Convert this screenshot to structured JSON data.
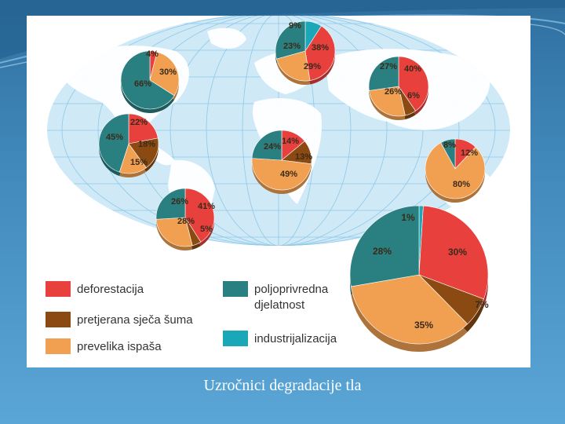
{
  "slide": {
    "caption": "Uzročnici degradacije tla",
    "background": "#3f87b8"
  },
  "colors": {
    "deforestacija": "#e8403c",
    "pretjerana_sjeca": "#8a4a12",
    "prevelika_ispasa": "#f0a050",
    "poljoprivreda": "#2a7f80",
    "industrijalizacija": "#1aa8b8",
    "ocean": "#cfe9f7",
    "land": "#ffffff"
  },
  "legend": {
    "items": [
      {
        "key": "deforestacija",
        "lines": [
          "deforestacija"
        ]
      },
      {
        "key": "pretjerana_sjeca",
        "lines": [
          "pretjerana sječa šuma"
        ]
      },
      {
        "key": "prevelika_ispasa",
        "lines": [
          "prevelika ispaša"
        ]
      },
      {
        "key": "poljoprivreda",
        "lines": [
          "poljoprivredna",
          "djelatnost"
        ]
      },
      {
        "key": "industrijalizacija",
        "lines": [
          "industrijalizacija"
        ]
      }
    ]
  },
  "chart_data": {
    "type": "pie",
    "series": [
      {
        "region": "europe",
        "slices": [
          {
            "cat": "industrijalizacija",
            "value": 9,
            "label": "9%"
          },
          {
            "cat": "deforestacija",
            "value": 38,
            "label": "38%"
          },
          {
            "cat": "prevelika_ispasa",
            "value": 23,
            "label": "23%"
          },
          {
            "cat": "poljoprivreda",
            "value": 29,
            "label": "29%"
          }
        ]
      },
      {
        "region": "north-america",
        "slices": [
          {
            "cat": "deforestacija",
            "value": 4,
            "label": "4%"
          },
          {
            "cat": "prevelika_ispasa",
            "value": 30,
            "label": "30%"
          },
          {
            "cat": "poljoprivreda",
            "value": 66,
            "label": "66%"
          }
        ]
      },
      {
        "region": "central-america",
        "slices": [
          {
            "cat": "deforestacija",
            "value": 22,
            "label": "22%"
          },
          {
            "cat": "pretjerana_sjeca",
            "value": 18,
            "label": "18%"
          },
          {
            "cat": "prevelika_ispasa",
            "value": 15,
            "label": "15%"
          },
          {
            "cat": "poljoprivreda",
            "value": 45,
            "label": "45%"
          }
        ]
      },
      {
        "region": "south-america",
        "slices": [
          {
            "cat": "deforestacija",
            "value": 41,
            "label": "41%"
          },
          {
            "cat": "pretjerana_sjeca",
            "value": 5,
            "label": "5%"
          },
          {
            "cat": "prevelika_ispasa",
            "value": 28,
            "label": "28%"
          },
          {
            "cat": "poljoprivreda",
            "value": 26,
            "label": "26%"
          }
        ]
      },
      {
        "region": "africa",
        "slices": [
          {
            "cat": "deforestacija",
            "value": 14,
            "label": "14%"
          },
          {
            "cat": "pretjerana_sjeca",
            "value": 13,
            "label": "13%"
          },
          {
            "cat": "prevelika_ispasa",
            "value": 49,
            "label": "49%"
          },
          {
            "cat": "poljoprivreda",
            "value": 24,
            "label": "24%"
          }
        ]
      },
      {
        "region": "asia",
        "slices": [
          {
            "cat": "deforestacija",
            "value": 40,
            "label": "40%"
          },
          {
            "cat": "pretjerana_sjeca",
            "value": 6,
            "label": "6%"
          },
          {
            "cat": "prevelika_ispasa",
            "value": 26,
            "label": "26%"
          },
          {
            "cat": "poljoprivreda",
            "value": 27,
            "label": "27%"
          }
        ]
      },
      {
        "region": "australia",
        "slices": [
          {
            "cat": "deforestacija",
            "value": 12,
            "label": "12%"
          },
          {
            "cat": "prevelika_ispasa",
            "value": 80,
            "label": "80%"
          },
          {
            "cat": "poljoprivreda",
            "value": 8,
            "label": "8%"
          }
        ]
      },
      {
        "region": "world",
        "slices": [
          {
            "cat": "industrijalizacija",
            "value": 1,
            "label": "1%"
          },
          {
            "cat": "deforestacija",
            "value": 30,
            "label": "30%"
          },
          {
            "cat": "pretjerana_sjeca",
            "value": 7,
            "label": "7%"
          },
          {
            "cat": "prevelika_ispasa",
            "value": 35,
            "label": "35%"
          },
          {
            "cat": "poljoprivreda",
            "value": 28,
            "label": "28%"
          }
        ]
      }
    ]
  }
}
